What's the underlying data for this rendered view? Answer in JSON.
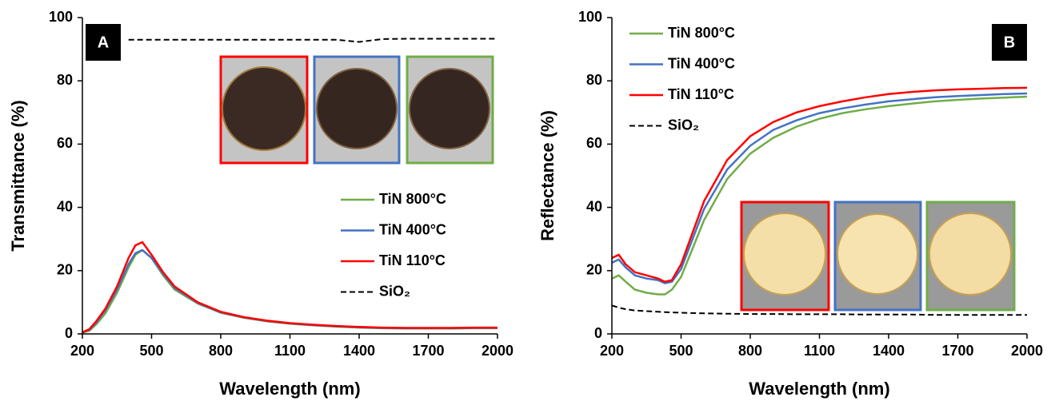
{
  "chart_data": [
    {
      "type": "line",
      "panel_label": "A",
      "xlabel": "Wavelength (nm)",
      "ylabel": "Transmittance (%)",
      "x": [
        200,
        230,
        260,
        300,
        350,
        400,
        430,
        460,
        500,
        550,
        600,
        700,
        800,
        900,
        1000,
        1100,
        1200,
        1300,
        1400,
        1500,
        1600,
        1700,
        1800,
        1900,
        2000
      ],
      "xlim": [
        200,
        2000
      ],
      "xticks": [
        200,
        500,
        800,
        1100,
        1400,
        1700,
        2000
      ],
      "ylim": [
        0,
        100
      ],
      "yticks": [
        0,
        20,
        40,
        60,
        80,
        100
      ],
      "legend_position": "lower right",
      "series": [
        {
          "name": "TiN 800°C",
          "color": "#70ad47",
          "style": "solid",
          "values": [
            0.4,
            1,
            3,
            6.5,
            13,
            21,
            25,
            26.5,
            24,
            18.5,
            14,
            9.6,
            6.7,
            5.1,
            4,
            3.2,
            2.7,
            2.3,
            2,
            1.8,
            1.7,
            1.7,
            1.7,
            1.8,
            1.8
          ]
        },
        {
          "name": "TiN 400°C",
          "color": "#4472c4",
          "style": "solid",
          "values": [
            0.5,
            1.3,
            3.5,
            7.5,
            14,
            22,
            25.5,
            26.5,
            24,
            19,
            14.5,
            9.8,
            6.8,
            5.2,
            4.1,
            3.3,
            2.8,
            2.4,
            2.1,
            1.9,
            1.8,
            1.8,
            1.8,
            1.9,
            1.9
          ]
        },
        {
          "name": "TiN 110°C",
          "color": "#ff0000",
          "style": "solid",
          "values": [
            0.5,
            1.5,
            4,
            8,
            15,
            24,
            28,
            29,
            25,
            19.5,
            15,
            10,
            7,
            5.3,
            4.2,
            3.4,
            2.9,
            2.5,
            2.2,
            2,
            1.9,
            1.9,
            1.9,
            2,
            2
          ]
        },
        {
          "name": "SiO₂",
          "color": "#000000",
          "style": "dashed",
          "values": [
            null,
            null,
            null,
            null,
            null,
            93,
            93,
            93,
            93,
            93,
            93,
            93,
            93,
            93,
            93,
            93,
            93,
            93,
            92.3,
            93.2,
            93.3,
            93.3,
            93.3,
            93.3,
            93.3
          ]
        }
      ]
    },
    {
      "type": "line",
      "panel_label": "B",
      "xlabel": "Wavelength (nm)",
      "ylabel": "Reflectance (%)",
      "x": [
        200,
        230,
        260,
        300,
        350,
        400,
        430,
        460,
        500,
        550,
        600,
        700,
        800,
        900,
        1000,
        1100,
        1200,
        1300,
        1400,
        1500,
        1600,
        1700,
        1800,
        1900,
        2000
      ],
      "xlim": [
        200,
        2000
      ],
      "xticks": [
        200,
        500,
        800,
        1100,
        1400,
        1700,
        2000
      ],
      "ylim": [
        0,
        100
      ],
      "yticks": [
        0,
        20,
        40,
        60,
        80,
        100
      ],
      "legend_position": "upper left",
      "series": [
        {
          "name": "TiN 800°C",
          "color": "#70ad47",
          "style": "solid",
          "values": [
            17.5,
            18.5,
            16.5,
            14,
            13,
            12.5,
            12.5,
            14,
            18,
            27,
            36,
            49,
            57,
            62,
            65.5,
            68,
            69.8,
            71,
            72,
            72.8,
            73.5,
            74,
            74.4,
            74.7,
            75
          ]
        },
        {
          "name": "TiN 400°C",
          "color": "#4472c4",
          "style": "solid",
          "values": [
            22.5,
            23.5,
            21,
            18.5,
            17.5,
            17,
            16,
            16.5,
            20.5,
            30,
            39.5,
            52,
            59.5,
            64.5,
            67.5,
            69.8,
            71.3,
            72.5,
            73.5,
            74.2,
            74.8,
            75.2,
            75.5,
            75.8,
            76
          ]
        },
        {
          "name": "TiN 110°C",
          "color": "#ff0000",
          "style": "solid",
          "values": [
            24,
            25,
            22,
            19.5,
            18.5,
            17.5,
            16.5,
            17,
            22,
            32,
            42,
            55,
            62.5,
            67,
            70,
            72,
            73.5,
            74.8,
            75.8,
            76.5,
            77,
            77.3,
            77.5,
            77.7,
            77.8
          ]
        },
        {
          "name": "SiO₂",
          "color": "#000000",
          "style": "dashed",
          "values": [
            9,
            8.3,
            7.8,
            7.4,
            7.2,
            7,
            6.9,
            6.8,
            6.7,
            6.6,
            6.5,
            6.4,
            6.3,
            6.3,
            6.2,
            6.2,
            6.2,
            6.1,
            6.1,
            6.1,
            6,
            6,
            6,
            6,
            6
          ]
        }
      ]
    }
  ]
}
